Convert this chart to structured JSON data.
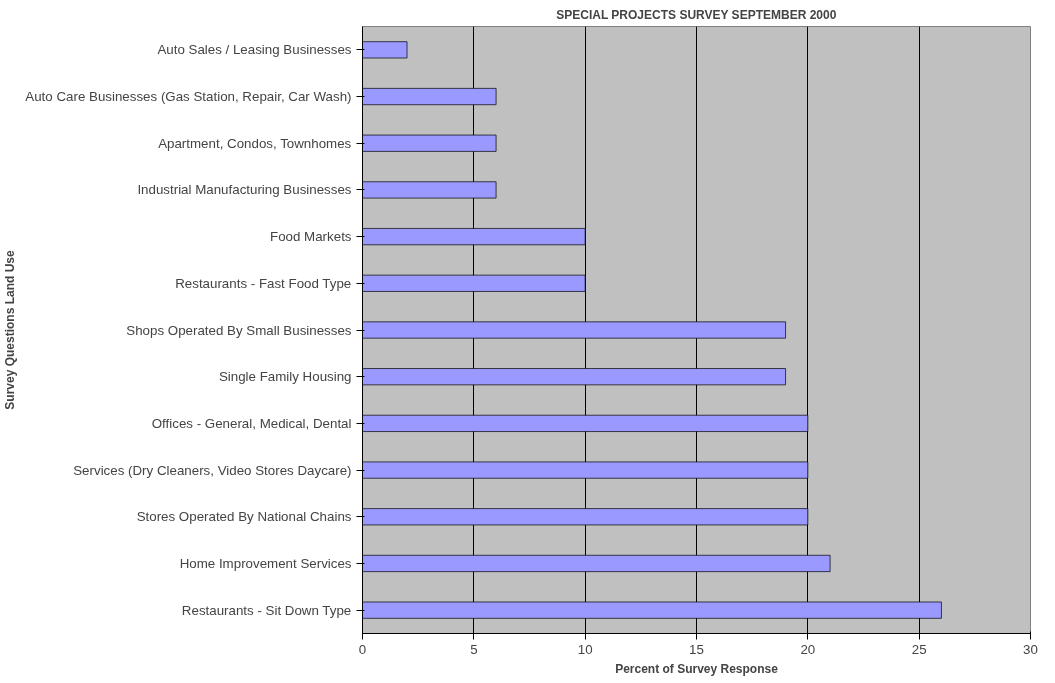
{
  "chart_data": {
    "type": "bar",
    "orientation": "horizontal",
    "title": "SPECIAL PROJECTS SURVEY SEPTEMBER 2000",
    "xlabel": "Percent of Survey Response",
    "ylabel": "Survey Questions Land Use",
    "categories": [
      "Auto Sales / Leasing Businesses",
      "Auto Care Businesses (Gas Station, Repair, Car Wash)",
      "Apartment, Condos, Townhomes",
      "Industrial Manufacturing Businesses",
      "Food Markets",
      "Restaurants - Fast Food Type",
      "Shops Operated By Small Businesses",
      "Single Family Housing",
      "Offices - General, Medical, Dental",
      "Services (Dry Cleaners, Video Stores Daycare)",
      "Stores Operated By National Chains",
      "Home Improvement Services",
      "Restaurants - Sit Down Type"
    ],
    "values": [
      2,
      6,
      6,
      6,
      10,
      10,
      19,
      19,
      20,
      20,
      20,
      21,
      26
    ],
    "color": "#9999ff",
    "xlim": [
      0,
      30
    ],
    "xticks": [
      0,
      5,
      10,
      15,
      20,
      25,
      30
    ],
    "grid": "x"
  }
}
